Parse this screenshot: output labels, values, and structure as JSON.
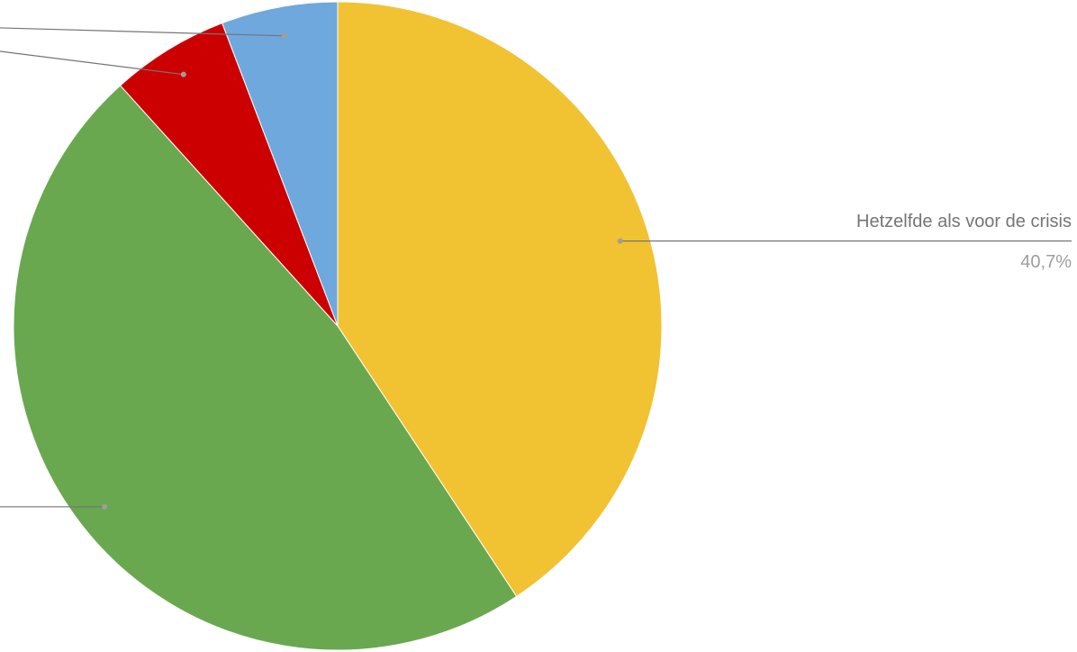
{
  "chart_data": {
    "type": "pie",
    "categories": [
      "Hetzelfde als voor de crisis",
      null,
      null,
      null
    ],
    "values": [
      40.7,
      47.6,
      5.9,
      5.8
    ],
    "value_labels": [
      "40,7%",
      null,
      null,
      null
    ],
    "colors": [
      "#f1c232",
      "#6aa84f",
      "#cc0000",
      "#6fa8dc"
    ]
  }
}
